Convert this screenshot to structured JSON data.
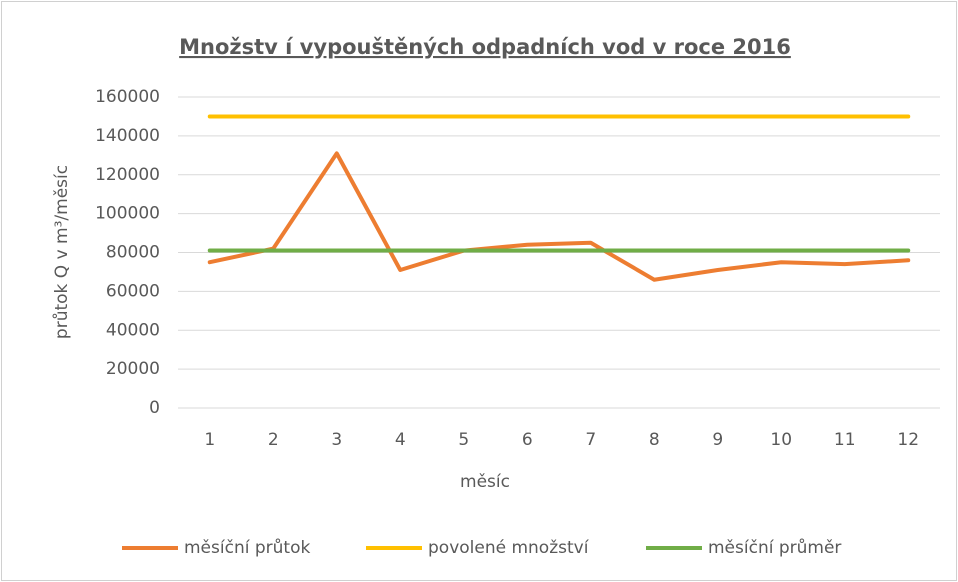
{
  "chart_data": {
    "type": "line",
    "title": "Množstv í vypouštěných odpadních vod v roce 2016",
    "x_label": "měsíc",
    "y_label": "průtok Q v m³/měsíc",
    "categories": [
      "1",
      "2",
      "3",
      "4",
      "5",
      "6",
      "7",
      "8",
      "9",
      "10",
      "11",
      "12"
    ],
    "series": [
      {
        "name": "měsíční průtok",
        "color": "#ed7d31",
        "values": [
          75000,
          82000,
          131000,
          71000,
          81000,
          84000,
          85000,
          66000,
          71000,
          75000,
          74000,
          76000
        ]
      },
      {
        "name": "povolené množství",
        "color": "#ffc000",
        "values": [
          150000,
          150000,
          150000,
          150000,
          150000,
          150000,
          150000,
          150000,
          150000,
          150000,
          150000,
          150000
        ]
      },
      {
        "name": "měsíční průměr",
        "color": "#70ad47",
        "values": [
          81000,
          81000,
          81000,
          81000,
          81000,
          81000,
          81000,
          81000,
          81000,
          81000,
          81000,
          81000
        ]
      }
    ],
    "ylim": [
      0,
      160000
    ],
    "yticks": [
      0,
      20000,
      40000,
      60000,
      80000,
      100000,
      120000,
      140000,
      160000
    ],
    "grid": true,
    "legend": "bottom"
  }
}
